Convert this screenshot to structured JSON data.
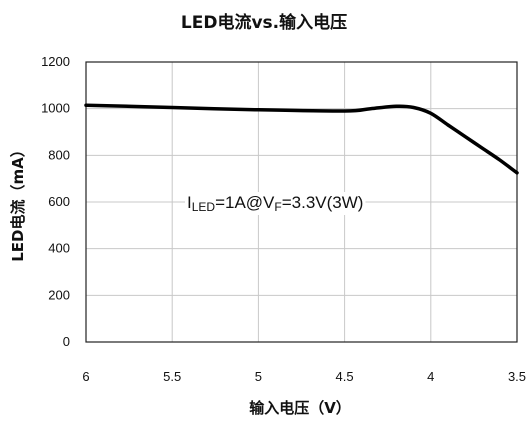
{
  "chart_data": {
    "type": "line",
    "title": "LED电流vs.输入电压",
    "xlabel": "输入电压（V）",
    "ylabel": "LED电流（mA）",
    "xlim": [
      6,
      3.5
    ],
    "ylim": [
      0,
      1200
    ],
    "x_reversed": true,
    "xticks": [
      "6",
      "5.5",
      "5",
      "4.5",
      "4",
      "3.5"
    ],
    "yticks": [
      "0",
      "200",
      "400",
      "600",
      "800",
      "1000",
      "1200"
    ],
    "grid": true,
    "legend": "none",
    "series": [
      {
        "color": "#000000",
        "x": [
          6.0,
          5.5,
          5.0,
          4.5,
          4.35,
          4.2,
          4.1,
          4.0,
          3.9,
          3.8,
          3.7,
          3.6,
          3.5
        ],
        "y": [
          1015,
          1005,
          995,
          990,
          1000,
          1010,
          1005,
          980,
          930,
          880,
          830,
          780,
          725
        ]
      }
    ],
    "annotation": {
      "parts": [
        {
          "text": "I",
          "sub": false
        },
        {
          "text": "LED",
          "sub": true
        },
        {
          "text": "=1A@V",
          "sub": false
        },
        {
          "text": "F",
          "sub": true
        },
        {
          "text": "=3.3V(3W)",
          "sub": false
        }
      ]
    }
  }
}
